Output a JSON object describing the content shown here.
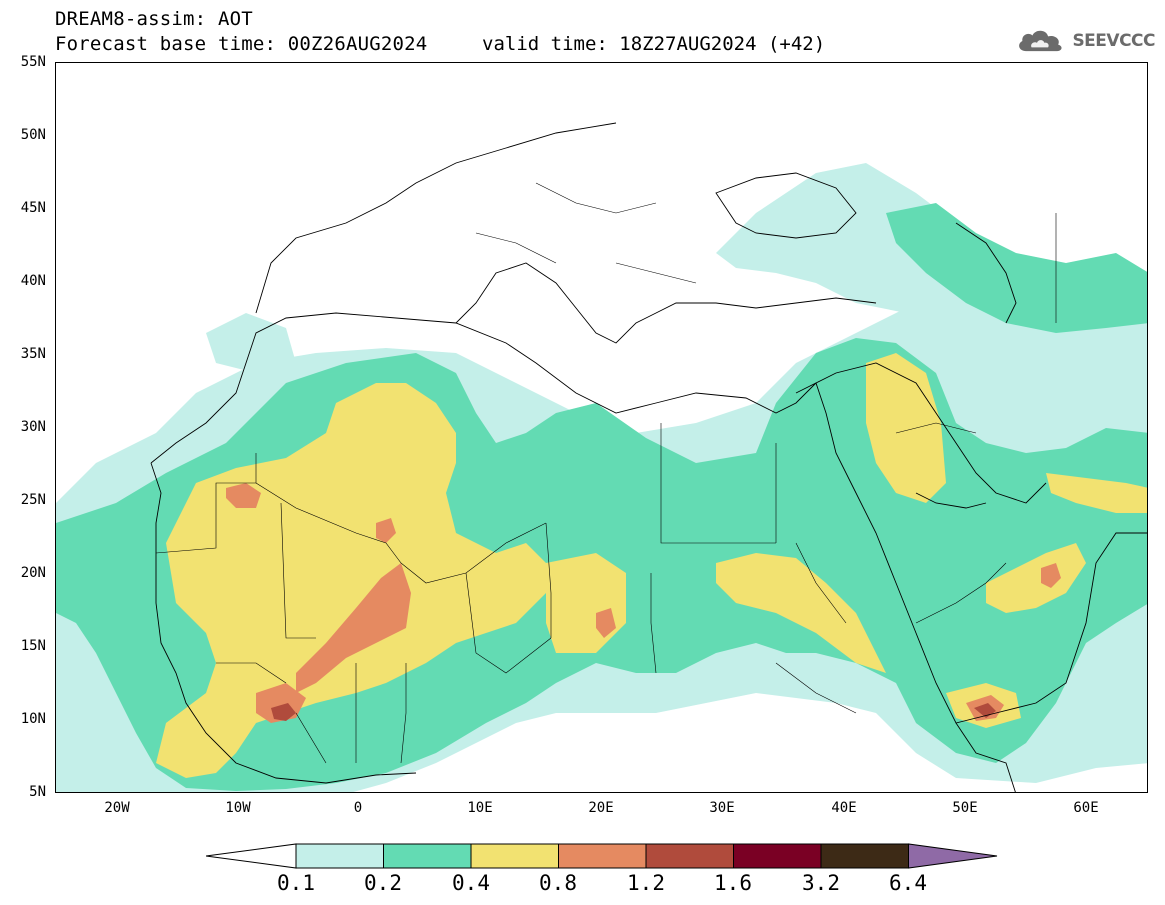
{
  "header": {
    "title": "DREAM8-assim: AOT",
    "base_time": "Forecast base time: 00Z26AUG2024",
    "valid_time": "valid time: 18Z27AUG2024 (+42)",
    "logo_text": "SEEVCCC",
    "logo_icon": "cloud-icon"
  },
  "map": {
    "projection": "cylindrical",
    "lon_range": [
      -25,
      65
    ],
    "lat_range": [
      5,
      55
    ],
    "lat_labels": [
      "55N",
      "50N",
      "45N",
      "40N",
      "35N",
      "30N",
      "25N",
      "20N",
      "15N",
      "10N",
      "5N"
    ],
    "lon_labels": [
      "20W",
      "10W",
      "0",
      "10E",
      "20E",
      "30E",
      "40E",
      "50E",
      "60E"
    ],
    "field": "Aerosol Optical Thickness",
    "colors": {
      "lt_0.1": "#ffffff",
      "0.1_0.2": "#c4efe9",
      "0.2_0.4": "#63dbb3",
      "0.4_0.8": "#f2e271",
      "0.8_1.2": "#e58a61",
      "1.2_1.6": "#b04b3c",
      "1.6_3.2": "#7a0024",
      "3.2_6.4": "#3d2a16",
      "gt_6.4": "#8f6aa6"
    }
  },
  "colorbar": {
    "labels": [
      "0.1",
      "0.2",
      "0.4",
      "0.8",
      "1.2",
      "1.6",
      "3.2",
      "6.4"
    ],
    "colors": [
      "#ffffff",
      "#c4efe9",
      "#63dbb3",
      "#f2e271",
      "#e58a61",
      "#b04b3c",
      "#7a0024",
      "#3d2a16",
      "#8f6aa6"
    ]
  }
}
